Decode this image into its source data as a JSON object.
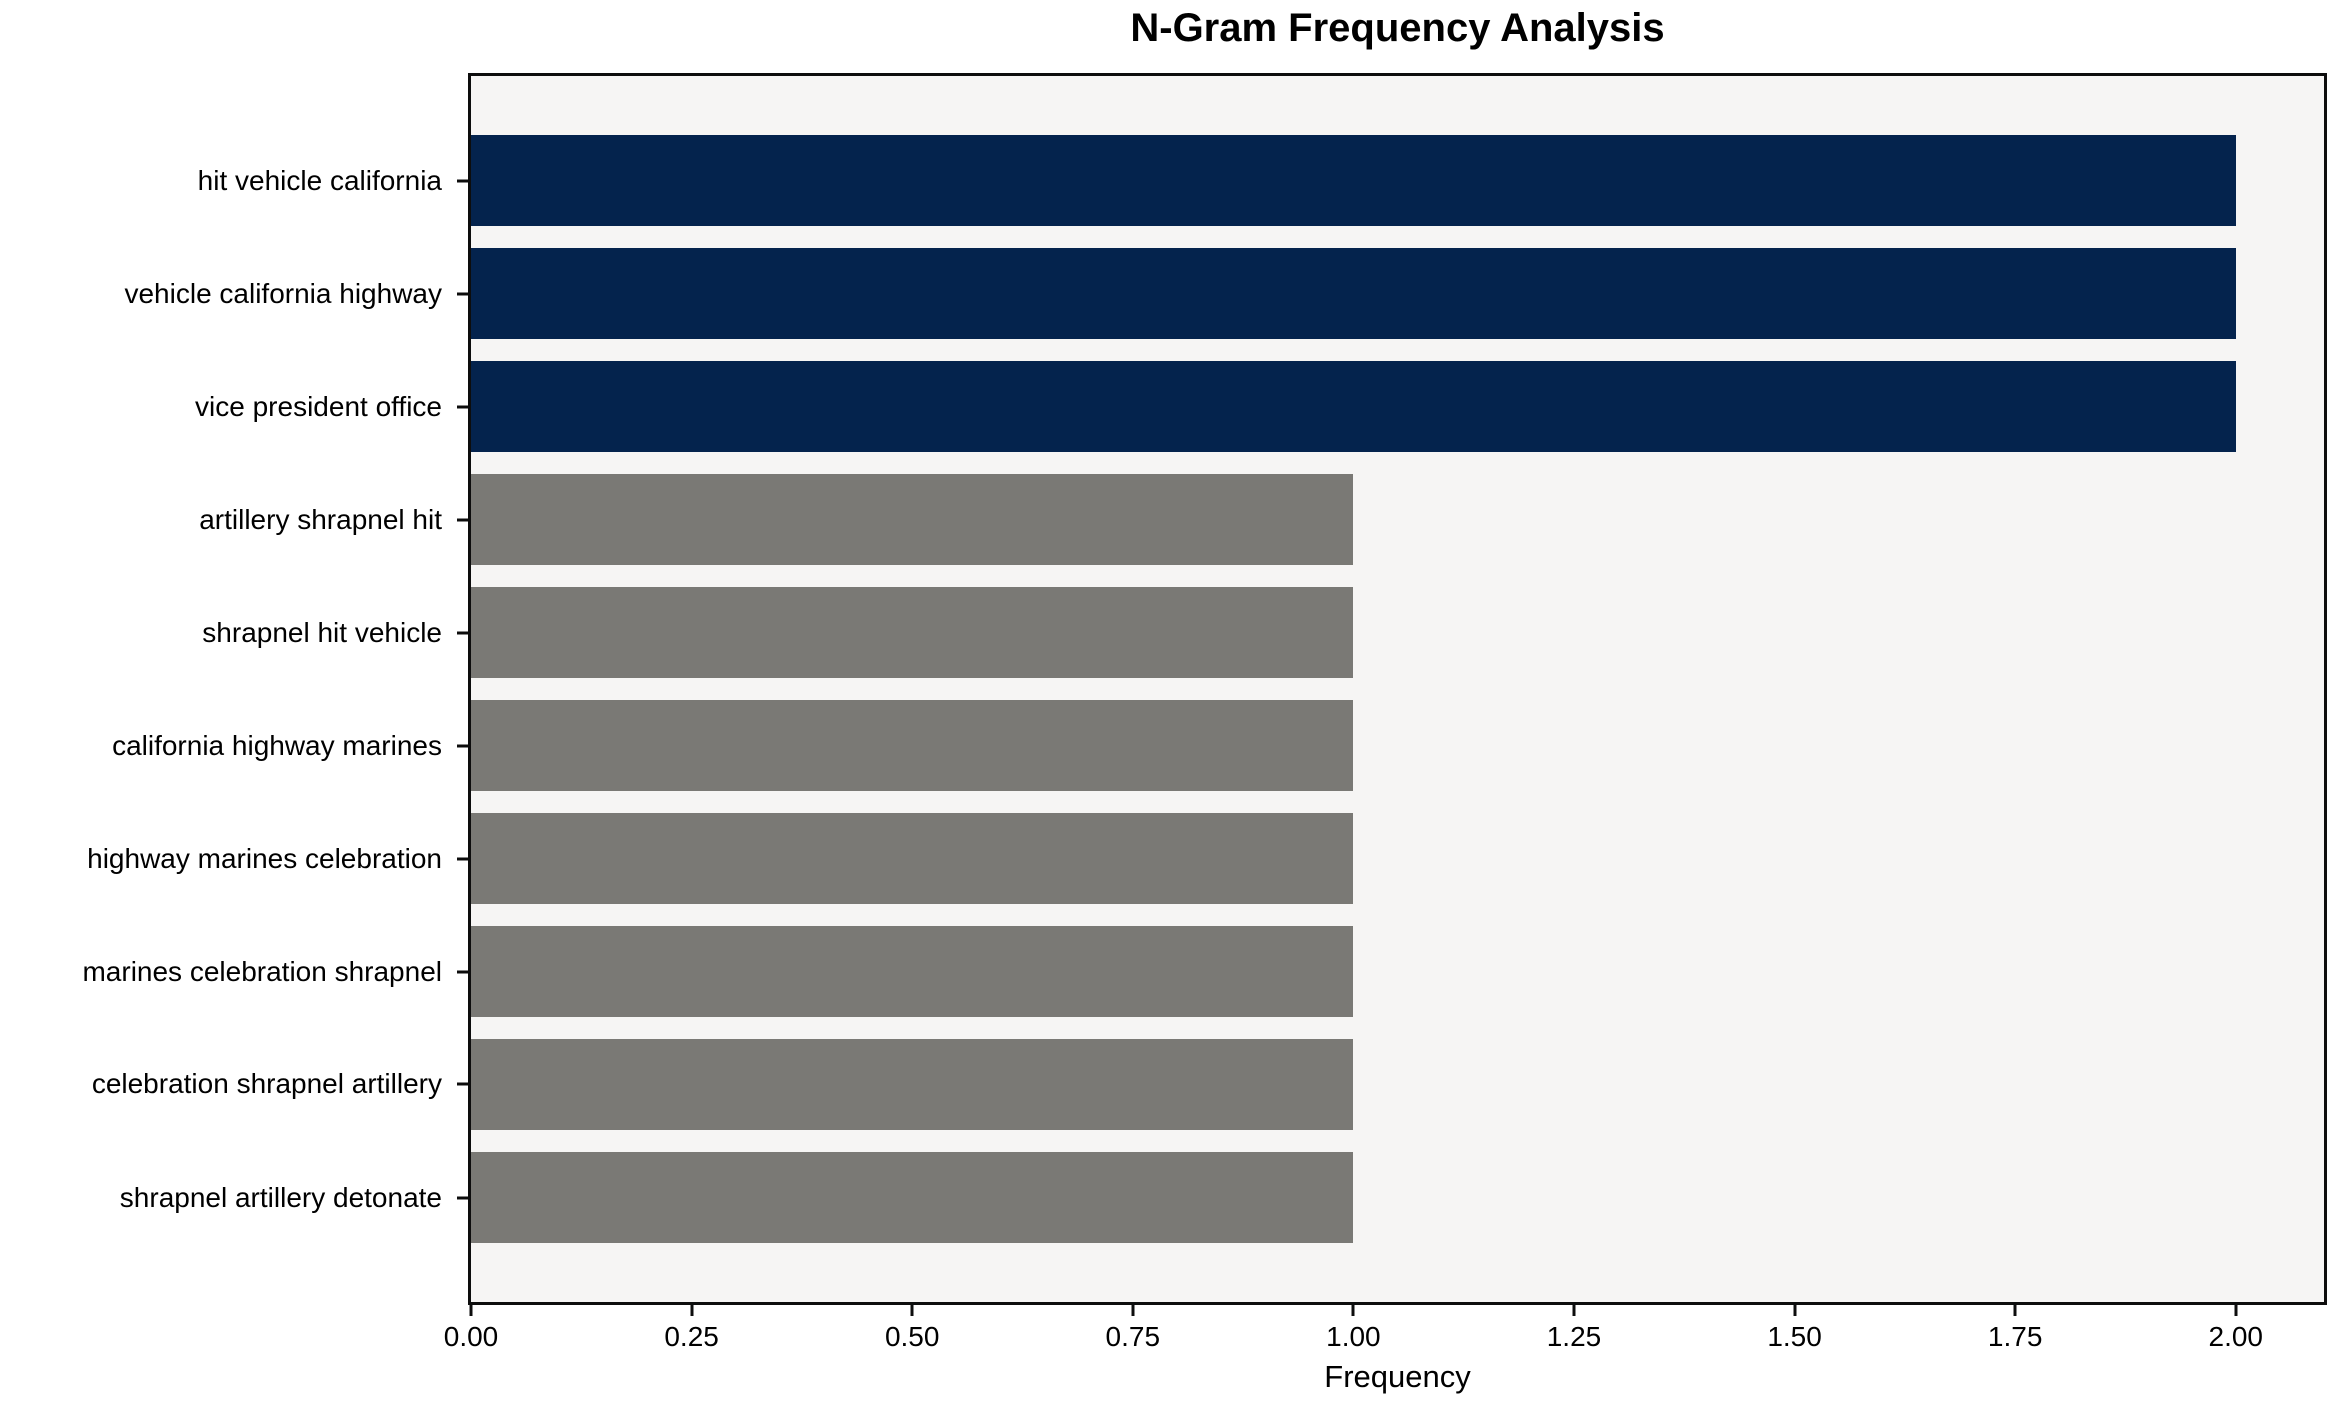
{
  "chart_data": {
    "type": "bar",
    "orientation": "horizontal",
    "title": "N-Gram Frequency Analysis",
    "xlabel": "Frequency",
    "ylabel": "",
    "categories": [
      "hit vehicle california",
      "vehicle california highway",
      "vice president office",
      "artillery shrapnel hit",
      "shrapnel hit vehicle",
      "california highway marines",
      "highway marines celebration",
      "marines celebration shrapnel",
      "celebration shrapnel artillery",
      "shrapnel artillery detonate"
    ],
    "values": [
      2,
      2,
      2,
      1,
      1,
      1,
      1,
      1,
      1,
      1
    ],
    "bar_colors": [
      "#04234d",
      "#04234d",
      "#04234d",
      "#7a7975",
      "#7a7975",
      "#7a7975",
      "#7a7975",
      "#7a7975",
      "#7a7975",
      "#7a7975"
    ],
    "xticks": [
      "0.00",
      "0.25",
      "0.50",
      "0.75",
      "1.00",
      "1.25",
      "1.50",
      "1.75",
      "2.00"
    ],
    "xlim": [
      0,
      2.1
    ],
    "grid": false,
    "legend": null,
    "colors": {
      "highlight_navy": "#04234d",
      "base_gray": "#7a7975",
      "plot_background": "#f6f5f4",
      "axis": "#0d0d0d"
    }
  }
}
